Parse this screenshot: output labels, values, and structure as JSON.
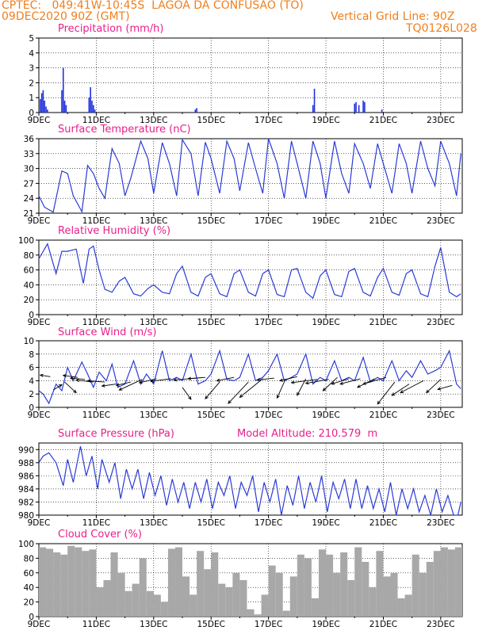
{
  "header": {
    "line1_left": "CPTEC:   049:41W-10:45S  LAGOA DA CONFUSAO (TO)",
    "line2_left": "09DEC2020 90Z (GMT)",
    "grid_note": "Vertical Grid Line: 90Z",
    "code": "TQ0126L028"
  },
  "x_ticks": [
    "9DEC",
    "11DEC",
    "13DEC",
    "15DEC",
    "17DEC",
    "19DEC",
    "21DEC",
    "23DEC"
  ],
  "colors": {
    "header": "#f07f1e",
    "title": "#e8208a",
    "line": "#2b3bd6",
    "bar": "#2233dd",
    "cloud": "#a8a8a8",
    "grid": "#000000"
  },
  "chart_data": [
    {
      "type": "bar",
      "title": "Precipitation (mm/h)",
      "ylim": [
        0,
        5
      ],
      "yticks": [
        0,
        1,
        2,
        3,
        4,
        5
      ],
      "x_units": "days since 9DEC",
      "x": [
        0.05,
        0.1,
        0.15,
        0.2,
        0.25,
        0.3,
        0.8,
        0.85,
        0.9,
        0.95,
        1.75,
        1.8,
        1.85,
        1.9,
        1.95,
        5.45,
        5.5,
        9.55,
        9.6,
        11.0,
        11.05,
        11.15,
        11.3,
        11.35,
        11.95
      ],
      "values": [
        0.9,
        1.3,
        1.5,
        0.8,
        0.4,
        0.2,
        1.5,
        3.0,
        0.8,
        0.5,
        1.0,
        1.7,
        0.8,
        0.5,
        0.2,
        0.2,
        0.3,
        0.5,
        1.6,
        0.6,
        0.7,
        0.5,
        0.8,
        0.7,
        0.2
      ]
    },
    {
      "type": "line",
      "title": "Surface Temperature (nC)",
      "ylim": [
        21,
        36
      ],
      "yticks": [
        21,
        24,
        27,
        30,
        33,
        36
      ],
      "x_units": "days since 9DEC",
      "x": [
        0,
        0.2,
        0.5,
        0.8,
        1.0,
        1.2,
        1.5,
        1.7,
        1.9,
        2.1,
        2.3,
        2.55,
        2.8,
        3.0,
        3.2,
        3.55,
        3.8,
        4.0,
        4.3,
        4.55,
        4.8,
        5.0,
        5.3,
        5.55,
        5.8,
        6.0,
        6.3,
        6.55,
        6.8,
        7.0,
        7.3,
        7.55,
        7.8,
        8.0,
        8.3,
        8.55,
        8.8,
        9.0,
        9.3,
        9.55,
        9.8,
        10.0,
        10.3,
        10.55,
        10.8,
        11.0,
        11.3,
        11.55,
        11.8,
        12.0,
        12.3,
        12.55,
        12.8,
        13.0,
        13.3,
        13.55,
        13.8,
        14.0,
        14.3,
        14.55,
        14.7
      ],
      "values": [
        24.5,
        22.2,
        21.2,
        29.5,
        29,
        24.5,
        21.3,
        30.6,
        29,
        26,
        24,
        34,
        31,
        24.5,
        28,
        35.5,
        32,
        25,
        35.2,
        31,
        24.5,
        35.8,
        33,
        24.5,
        35.3,
        32,
        25,
        35.5,
        32,
        25.5,
        35.2,
        30,
        25,
        36,
        31,
        24,
        35.5,
        31,
        24,
        35.5,
        31,
        24,
        35.5,
        29,
        25,
        35,
        31,
        26,
        35,
        31,
        25,
        35,
        31,
        25,
        35.5,
        30,
        26.5,
        35.5,
        31,
        24.5,
        33
      ]
    },
    {
      "type": "line",
      "title": "Relative Humidity (%)",
      "ylim": [
        0,
        100
      ],
      "yticks": [
        0,
        20,
        40,
        60,
        80,
        100
      ],
      "x_units": "days since 9DEC",
      "x": [
        0,
        0.3,
        0.6,
        0.8,
        1.0,
        1.3,
        1.55,
        1.75,
        1.9,
        2.1,
        2.3,
        2.55,
        2.8,
        3.0,
        3.3,
        3.55,
        3.8,
        4.0,
        4.3,
        4.55,
        4.8,
        5.0,
        5.3,
        5.55,
        5.8,
        6.0,
        6.3,
        6.55,
        6.8,
        7.0,
        7.3,
        7.55,
        7.8,
        8.0,
        8.3,
        8.55,
        8.8,
        9.0,
        9.3,
        9.55,
        9.8,
        10.0,
        10.3,
        10.55,
        10.8,
        11.0,
        11.3,
        11.55,
        11.8,
        12.0,
        12.3,
        12.55,
        12.8,
        13.0,
        13.3,
        13.55,
        13.8,
        14.0,
        14.3,
        14.55,
        14.7
      ],
      "values": [
        75,
        95,
        55,
        85,
        85,
        88,
        42,
        88,
        92,
        60,
        34,
        30,
        45,
        50,
        28,
        25,
        35,
        40,
        30,
        28,
        55,
        65,
        30,
        25,
        50,
        55,
        28,
        24,
        55,
        60,
        30,
        25,
        55,
        60,
        27,
        24,
        60,
        62,
        30,
        22,
        52,
        60,
        27,
        24,
        58,
        62,
        30,
        25,
        50,
        62,
        30,
        26,
        55,
        60,
        28,
        24,
        65,
        90,
        30,
        24,
        28
      ]
    },
    {
      "type": "line",
      "title": "Surface Wind (m/s)",
      "ylim": [
        0,
        10
      ],
      "yticks": [
        0,
        2,
        4,
        6,
        8,
        10
      ],
      "x_units": "days since 9DEC",
      "x": [
        0,
        0.15,
        0.35,
        0.6,
        0.8,
        1.0,
        1.2,
        1.5,
        1.7,
        1.9,
        2.1,
        2.35,
        2.55,
        2.75,
        3.0,
        3.3,
        3.55,
        3.75,
        4.0,
        4.3,
        4.55,
        4.8,
        5.0,
        5.3,
        5.55,
        5.8,
        6.0,
        6.3,
        6.55,
        6.8,
        7.0,
        7.3,
        7.55,
        7.8,
        8.0,
        8.3,
        8.55,
        8.8,
        9.0,
        9.3,
        9.55,
        9.8,
        10.0,
        10.3,
        10.55,
        10.8,
        11.0,
        11.3,
        11.55,
        11.8,
        12.0,
        12.3,
        12.55,
        12.8,
        13.0,
        13.3,
        13.55,
        13.8,
        14.0,
        14.3,
        14.55,
        14.7
      ],
      "values": [
        2.5,
        2,
        0.6,
        3.5,
        2.5,
        6,
        4,
        6.8,
        5,
        3,
        5.3,
        4,
        6.5,
        3,
        3.5,
        7,
        3.5,
        5,
        3.5,
        8.5,
        4,
        4.5,
        4,
        8,
        3.5,
        4,
        5,
        8.5,
        4.2,
        4,
        4.5,
        8,
        4,
        4.5,
        5.5,
        8,
        4,
        4.5,
        5,
        8,
        3.5,
        4.5,
        4,
        7,
        4,
        4.5,
        4,
        7.5,
        3.8,
        4.5,
        4,
        7,
        4,
        5.5,
        4.5,
        7,
        5,
        5.5,
        6,
        8.5,
        3.5,
        2.8
      ],
      "arrows": [
        [
          0.4,
          4.6,
          -0.35,
          0.25
        ],
        [
          0.5,
          2.6,
          0.3,
          0.8
        ],
        [
          0.9,
          3.8,
          0.4,
          -1.6
        ],
        [
          1.35,
          4.5,
          -0.5,
          0.3
        ],
        [
          1.6,
          4.2,
          -0.5,
          0.2
        ],
        [
          1.9,
          3.8,
          -0.6,
          0.3
        ],
        [
          2.3,
          3.8,
          -0.6,
          0.2
        ],
        [
          2.7,
          3.5,
          -0.5,
          -0.3
        ],
        [
          3.2,
          3.8,
          -0.5,
          -0.5
        ],
        [
          3.6,
          4.2,
          -0.8,
          -1.6
        ],
        [
          4.1,
          4.3,
          -0.6,
          -0.6
        ],
        [
          4.6,
          4.3,
          -0.7,
          -0.4
        ],
        [
          5.0,
          3.0,
          0.3,
          -1.8
        ],
        [
          5.5,
          4.4,
          -0.8,
          -0.3
        ],
        [
          5.8,
          4.5,
          -0.6,
          -0.2
        ],
        [
          6.3,
          3.8,
          -0.5,
          -2.5
        ],
        [
          6.8,
          4.5,
          -0.6,
          -0.5
        ],
        [
          7.3,
          3.8,
          -0.7,
          -3.2
        ],
        [
          7.8,
          4.3,
          -0.8,
          -2.8
        ],
        [
          8.2,
          4.4,
          -0.6,
          -0.3
        ],
        [
          8.6,
          4.3,
          -0.3,
          -2.9
        ],
        [
          9.0,
          4.6,
          -0.6,
          -0.6
        ],
        [
          9.3,
          4.3,
          -0.3,
          -2.5
        ],
        [
          9.7,
          4.2,
          -0.9,
          -0.5
        ],
        [
          10.1,
          4.2,
          -0.8,
          -0.6
        ],
        [
          10.4,
          4.5,
          -0.5,
          -2.0
        ],
        [
          10.8,
          4.3,
          -0.6,
          -0.8
        ],
        [
          11.2,
          4.3,
          -0.7,
          -0.8
        ],
        [
          11.7,
          4.3,
          -0.6,
          -1.3
        ],
        [
          12.1,
          4.5,
          -0.8,
          -1.0
        ],
        [
          12.4,
          3.8,
          -0.6,
          -3.3
        ],
        [
          12.9,
          3.5,
          -0.6,
          -1.7
        ],
        [
          13.4,
          4.0,
          -0.8,
          -1.8
        ],
        [
          14.0,
          4.2,
          -0.5,
          -2.0
        ],
        [
          14.4,
          3.3,
          -0.5,
          -0.6
        ]
      ]
    },
    {
      "type": "line",
      "title": "Surface Pressure (hPa)",
      "annotation": "Model Altitude: 210.579  m",
      "ylim": [
        980,
        991
      ],
      "yticks": [
        980,
        982,
        984,
        986,
        988,
        990
      ],
      "x_units": "days since 9DEC",
      "x": [
        0,
        0.15,
        0.35,
        0.6,
        0.85,
        1.0,
        1.2,
        1.45,
        1.65,
        1.85,
        2.05,
        2.2,
        2.45,
        2.65,
        2.85,
        3.05,
        3.25,
        3.45,
        3.65,
        3.85,
        4.05,
        4.25,
        4.45,
        4.65,
        4.85,
        5.05,
        5.25,
        5.45,
        5.65,
        5.85,
        6.05,
        6.25,
        6.45,
        6.65,
        6.85,
        7.05,
        7.25,
        7.45,
        7.65,
        7.85,
        8.05,
        8.25,
        8.45,
        8.65,
        8.85,
        9.05,
        9.25,
        9.45,
        9.65,
        9.85,
        10.05,
        10.25,
        10.45,
        10.65,
        10.85,
        11.05,
        11.25,
        11.45,
        11.65,
        11.85,
        12.05,
        12.25,
        12.45,
        12.65,
        12.85,
        13.05,
        13.25,
        13.45,
        13.65,
        13.85,
        14.05,
        14.25,
        14.45,
        14.6,
        14.7
      ],
      "values": [
        988,
        989,
        989.5,
        988,
        984.5,
        988.5,
        985,
        990.5,
        986,
        989,
        984,
        988.5,
        985,
        988,
        982.5,
        987,
        984,
        987,
        982.5,
        986.5,
        983,
        986,
        981.5,
        985.5,
        982,
        985,
        981,
        985,
        982,
        985.5,
        981,
        985,
        983,
        986,
        981,
        985,
        983,
        986,
        980.5,
        985,
        982,
        985.5,
        980,
        984.5,
        981.5,
        986,
        981,
        985,
        982,
        986,
        980.5,
        985,
        982.5,
        985.5,
        981,
        985.5,
        981,
        984.5,
        981,
        984,
        980.5,
        985,
        980,
        984,
        981,
        984,
        980.5,
        983,
        980,
        984,
        980.5,
        983,
        980,
        980,
        982
      ]
    },
    {
      "type": "bar",
      "title": "Cloud Cover (%)",
      "ylim": [
        0,
        100
      ],
      "yticks": [
        0,
        20,
        40,
        60,
        80,
        100
      ],
      "x_units": "days since 9DEC",
      "x": [
        0,
        0.25,
        0.5,
        0.75,
        1.0,
        1.25,
        1.5,
        1.75,
        2.0,
        2.25,
        2.5,
        2.75,
        3.0,
        3.25,
        3.5,
        3.75,
        4.0,
        4.25,
        4.5,
        4.75,
        5.0,
        5.25,
        5.5,
        5.75,
        6.0,
        6.25,
        6.5,
        6.75,
        7.0,
        7.25,
        7.5,
        7.75,
        8.0,
        8.25,
        8.5,
        8.75,
        9.0,
        9.25,
        9.5,
        9.75,
        10.0,
        10.25,
        10.5,
        10.75,
        11.0,
        11.25,
        11.5,
        11.75,
        12.0,
        12.25,
        12.5,
        12.75,
        13.0,
        13.25,
        13.5,
        13.75,
        14.0,
        14.25,
        14.5
      ],
      "values": [
        95,
        93,
        88,
        85,
        97,
        95,
        90,
        92,
        40,
        50,
        88,
        60,
        35,
        45,
        80,
        35,
        30,
        20,
        93,
        95,
        55,
        30,
        90,
        65,
        88,
        45,
        40,
        60,
        50,
        10,
        3,
        30,
        70,
        60,
        8,
        55,
        85,
        80,
        25,
        92,
        85,
        60,
        88,
        50,
        95,
        75,
        40,
        90,
        55,
        60,
        25,
        30,
        85,
        60,
        75,
        90,
        95,
        92,
        95
      ]
    }
  ]
}
